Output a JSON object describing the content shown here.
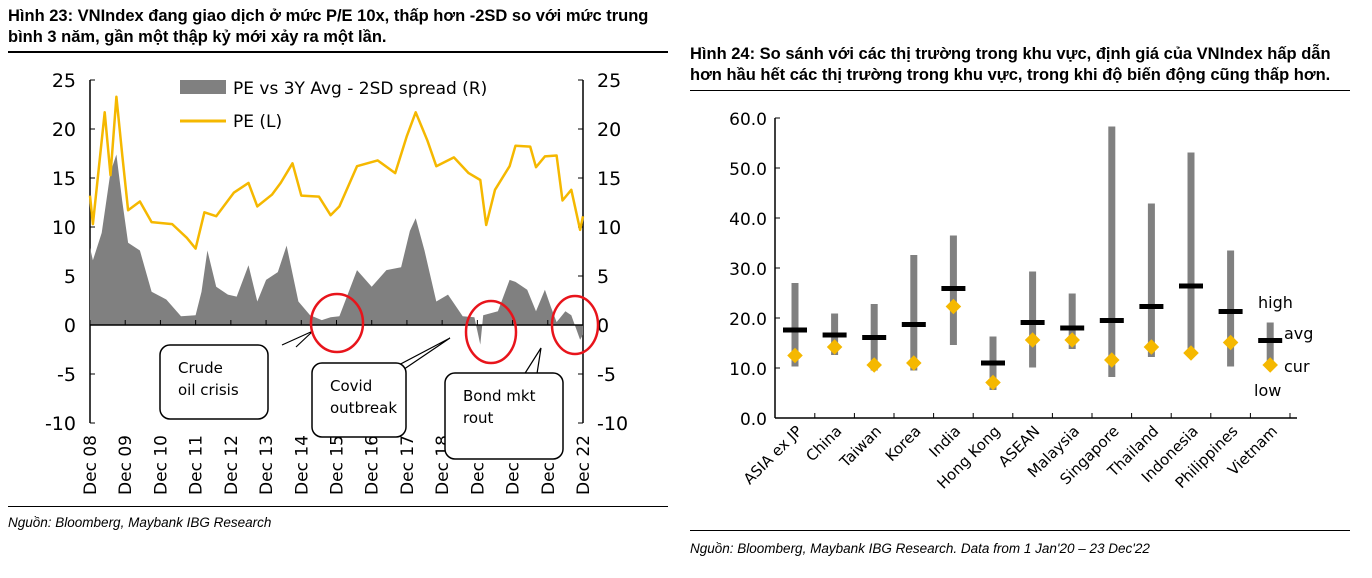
{
  "left": {
    "title": "Hình 23: VNIndex đang giao dịch ở mức P/E 10x, thấp hơn -2SD so với mức trung bình 3 năm, gần một thập kỷ mới xảy ra một lần.",
    "source": "Nguồn: Bloomberg, Maybank IBG Research"
  },
  "right": {
    "title": "Hình 24: So sánh với các thị trường trong khu vực, định giá của VNIndex hấp dẫn hơn hầu hết các thị trường trong khu vực, trong khi độ biến động cũng thấp hơn.",
    "source": "Nguồn: Bloomberg, Maybank IBG Research. Data from 1 Jan'20 – 23 Dec'22"
  },
  "chart_data": [
    {
      "type": "line",
      "x_ticks": [
        "Dec 08",
        "Dec 09",
        "Dec 10",
        "Dec 11",
        "Dec 12",
        "Dec 13",
        "Dec 14",
        "Dec 15",
        "Dec 16",
        "Dec 17",
        "Dec 18",
        "Dec 19",
        "Dec 20",
        "Dec 21",
        "Dec 22"
      ],
      "y_ticks": [
        "25",
        "20",
        "15",
        "10",
        "5",
        "0",
        "-5",
        "-10"
      ],
      "ylim": [
        -10,
        25
      ],
      "grid": false,
      "legend_placement": "top",
      "colors": {
        "pe": "#F5B800",
        "spread": "#808080",
        "circle": "#E8141B"
      },
      "series": [
        {
          "name": "PE vs 3Y Avg - 2SD spread (R)",
          "type": "area",
          "axis": "right",
          "points": [
            [
              "2008-12",
              8.5
            ],
            [
              "2009-01",
              6
            ],
            [
              "2009-04",
              10
            ],
            [
              "2009-07",
              15
            ],
            [
              "2009-09",
              18
            ],
            [
              "2009-11",
              12
            ],
            [
              "2010-01",
              9
            ],
            [
              "2010-05",
              7
            ],
            [
              "2010-09",
              4
            ],
            [
              "2011-02",
              2
            ],
            [
              "2011-07",
              1.5
            ],
            [
              "2011-12",
              1.0
            ],
            [
              "2012-02",
              4
            ],
            [
              "2012-04",
              7
            ],
            [
              "2012-07",
              4.5
            ],
            [
              "2012-11",
              2.5
            ],
            [
              "2013-02",
              3.5
            ],
            [
              "2013-06",
              5.5
            ],
            [
              "2013-09",
              3
            ],
            [
              "2013-12",
              4
            ],
            [
              "2014-04",
              6
            ],
            [
              "2014-07",
              7.5
            ],
            [
              "2014-11",
              3
            ],
            [
              "2015-03",
              1
            ],
            [
              "2015-07",
              0.5
            ],
            [
              "2015-10",
              0.8
            ],
            [
              "2016-01",
              1.5
            ],
            [
              "2016-07",
              5
            ],
            [
              "2016-12",
              4.5
            ],
            [
              "2017-05",
              5
            ],
            [
              "2017-10",
              6.5
            ],
            [
              "2018-01",
              9
            ],
            [
              "2018-03",
              11.5
            ],
            [
              "2018-06",
              7
            ],
            [
              "2018-10",
              3
            ],
            [
              "2019-02",
              2.5
            ],
            [
              "2019-07",
              1.5
            ],
            [
              "2019-11",
              0.8
            ],
            [
              "2020-01",
              -2
            ],
            [
              "2020-02",
              1
            ],
            [
              "2020-07",
              2
            ],
            [
              "2020-11",
              4
            ],
            [
              "2021-01",
              5
            ],
            [
              "2021-05",
              3
            ],
            [
              "2021-08",
              2
            ],
            [
              "2021-11",
              3
            ],
            [
              "2022-01",
              2.5
            ],
            [
              "2022-03",
              0.3
            ],
            [
              "2022-06",
              2
            ],
            [
              "2022-08",
              1
            ],
            [
              "2022-11",
              -1.5
            ],
            [
              "2022-12",
              -1
            ]
          ]
        },
        {
          "name": "PE (L)",
          "type": "line",
          "axis": "left",
          "points": [
            [
              "2008-12",
              13.5
            ],
            [
              "2009-01",
              10.0
            ],
            [
              "2009-05",
              22
            ],
            [
              "2009-07",
              15
            ],
            [
              "2009-09",
              23.6
            ],
            [
              "2009-11",
              17
            ],
            [
              "2010-01",
              12
            ],
            [
              "2010-05",
              12.3
            ],
            [
              "2010-09",
              10.8
            ],
            [
              "2011-04",
              10.0
            ],
            [
              "2011-09",
              9.2
            ],
            [
              "2011-12",
              7.5
            ],
            [
              "2012-03",
              11.8
            ],
            [
              "2012-07",
              10.8
            ],
            [
              "2013-01",
              13.8
            ],
            [
              "2013-06",
              14.2
            ],
            [
              "2013-09",
              12.4
            ],
            [
              "2014-02",
              13.0
            ],
            [
              "2014-05",
              14.8
            ],
            [
              "2014-09",
              16.2
            ],
            [
              "2014-12",
              13.5
            ],
            [
              "2015-06",
              12.8
            ],
            [
              "2015-10",
              11.5
            ],
            [
              "2016-01",
              11.8
            ],
            [
              "2016-07",
              16.5
            ],
            [
              "2017-02",
              16.5
            ],
            [
              "2017-08",
              15.8
            ],
            [
              "2017-12",
              19
            ],
            [
              "2018-03",
              22
            ],
            [
              "2018-07",
              18.5
            ],
            [
              "2018-10",
              16.5
            ],
            [
              "2019-04",
              16.8
            ],
            [
              "2019-09",
              15.8
            ],
            [
              "2020-01",
              14.5
            ],
            [
              "2020-03",
              10.5
            ],
            [
              "2020-06",
              13.5
            ],
            [
              "2020-11",
              16.5
            ],
            [
              "2021-01",
              18
            ],
            [
              "2021-06",
              18.5
            ],
            [
              "2021-08",
              15.8
            ],
            [
              "2021-11",
              17.5
            ],
            [
              "2022-03",
              17
            ],
            [
              "2022-05",
              13
            ],
            [
              "2022-08",
              13.5
            ],
            [
              "2022-11",
              10
            ],
            [
              "2022-12",
              10.8
            ]
          ]
        }
      ],
      "annotations": [
        {
          "text": "Crude oil crisis",
          "lines": [
            "Crude",
            "oil crisis"
          ],
          "at": "2015-10"
        },
        {
          "text": "Covid outbreak",
          "lines": [
            "Covid",
            "outbreak"
          ],
          "at": "2020-03"
        },
        {
          "text": "Bond mkt rout",
          "lines": [
            "Bond mkt",
            "rout"
          ],
          "at": "2022-11"
        }
      ]
    },
    {
      "type": "high-low-avg-current",
      "categories": [
        "ASIA ex JP",
        "China",
        "Taiwan",
        "Korea",
        "India",
        "Hong Kong",
        "ASEAN",
        "Malaysia",
        "Singapore",
        "Thailand",
        "Indonesia",
        "Philippines",
        "Vietnam"
      ],
      "high": [
        27.0,
        20.9,
        22.8,
        32.6,
        36.5,
        16.3,
        29.3,
        24.9,
        58.3,
        42.9,
        53.1,
        33.5,
        19.1
      ],
      "low": [
        10.3,
        12.6,
        9.5,
        9.5,
        14.6,
        5.6,
        10.1,
        13.8,
        8.2,
        12.2,
        12.5,
        10.3,
        10.3
      ],
      "avg": [
        17.6,
        16.6,
        16.1,
        18.7,
        25.9,
        11.0,
        19.1,
        18.0,
        19.5,
        22.3,
        26.4,
        21.3,
        15.5
      ],
      "cur": [
        12.5,
        14.2,
        10.6,
        11.0,
        22.3,
        7.1,
        15.6,
        15.6,
        11.6,
        14.2,
        13.0,
        15.1,
        10.6
      ],
      "y_ticks": [
        "60.0",
        "50.0",
        "40.0",
        "30.0",
        "20.0",
        "10.0",
        "0.0"
      ],
      "ylim": [
        0,
        60
      ],
      "grid": false,
      "legend": {
        "high": "high",
        "avg": "avg",
        "cur": "cur",
        "low": "low"
      },
      "legend_placement": "right",
      "colors": {
        "range": "#808080",
        "avg": "#000000",
        "cur": "#F5B800"
      }
    }
  ]
}
